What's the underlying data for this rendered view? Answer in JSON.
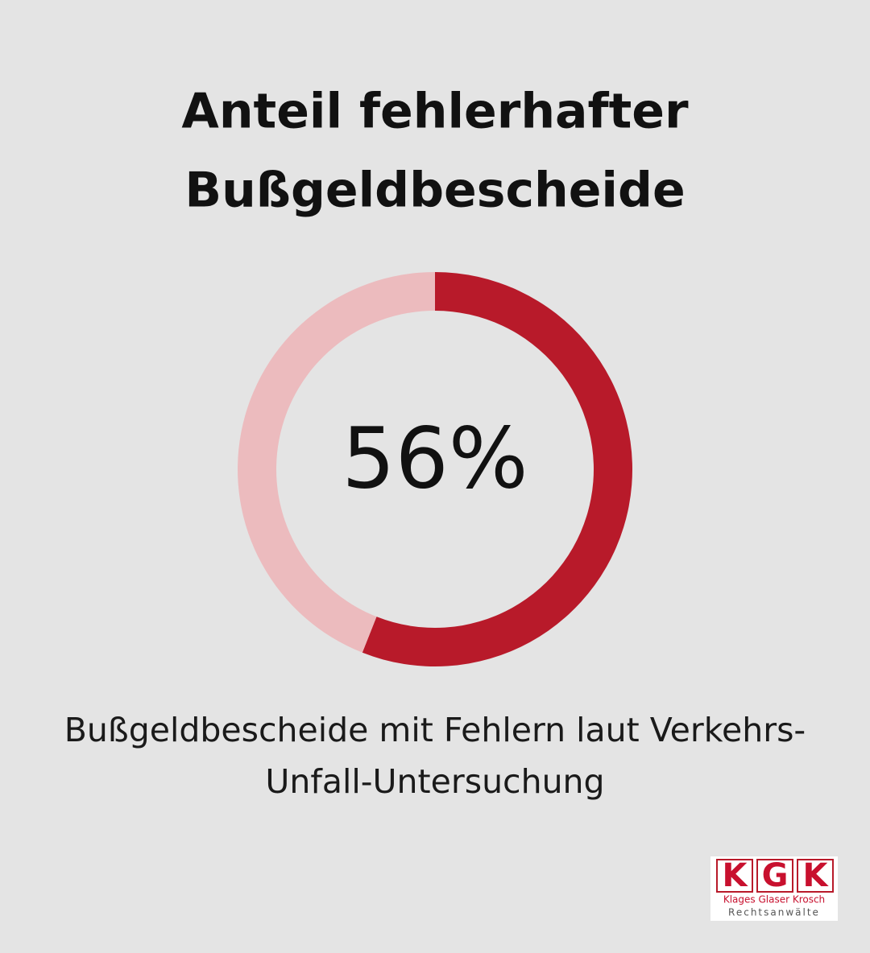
{
  "chart_data": {
    "type": "donut",
    "title": [
      "Anteil fehlerhafter",
      "Bußgeldbescheide"
    ],
    "values": [
      56,
      44
    ],
    "value_labels": [
      "56%",
      null
    ],
    "colors": [
      "#b81a2a",
      "#ecbbbe"
    ],
    "caption": [
      "Bußgeldbescheide mit Fehlern laut Verkehrs-",
      "Unfall-Untersuchung"
    ]
  },
  "logo": {
    "letters": [
      "K",
      "G",
      "K"
    ],
    "names": "Klages Glaser Krosch",
    "subtitle": "Rechtsanwälte"
  }
}
